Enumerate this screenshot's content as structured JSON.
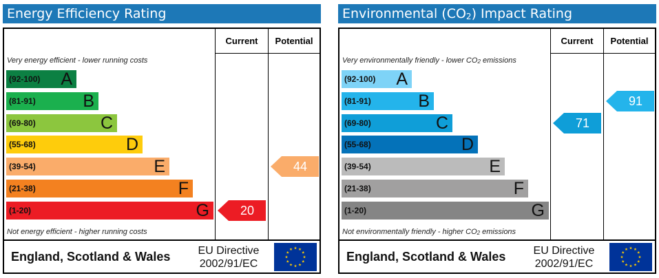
{
  "chart_data": [
    {
      "type": "rating-chart",
      "title": "Energy Efficiency Rating",
      "columns": [
        "Current",
        "Potential"
      ],
      "top_caption": "Very energy efficient - lower running costs",
      "bottom_caption": "Not energy efficient - higher running costs",
      "bands": [
        {
          "range": "(92-100)",
          "letter": "A",
          "color": "#0c8043"
        },
        {
          "range": "(81-91)",
          "letter": "B",
          "color": "#1bb04e"
        },
        {
          "range": "(69-80)",
          "letter": "C",
          "color": "#8cc63e"
        },
        {
          "range": "(55-68)",
          "letter": "D",
          "color": "#fecc0c"
        },
        {
          "range": "(39-54)",
          "letter": "E",
          "color": "#faac6a"
        },
        {
          "range": "(21-38)",
          "letter": "F",
          "color": "#f38120"
        },
        {
          "range": "(1-20)",
          "letter": "G",
          "color": "#ec1c24"
        }
      ],
      "current": {
        "value": 20,
        "band": "G",
        "color": "#ec1c24"
      },
      "potential": {
        "value": 44,
        "band": "E",
        "color": "#faac6a"
      }
    },
    {
      "type": "rating-chart",
      "title": "Environmental (CO2) Impact Rating",
      "title_parts": {
        "before": "Environmental (CO",
        "sub": "2",
        "after": ") Impact Rating"
      },
      "columns": [
        "Current",
        "Potential"
      ],
      "top_caption": "Very environmentally friendly - lower CO2 emissions",
      "top_caption_parts": {
        "before": "Very environmentally friendly - lower CO",
        "sub": "2",
        "after": " emissions"
      },
      "bottom_caption": "Not environmentally friendly - higher CO2 emissions",
      "bottom_caption_parts": {
        "before": "Not environmentally friendly - higher CO",
        "sub": "2",
        "after": " emissions"
      },
      "bands": [
        {
          "range": "(92-100)",
          "letter": "A",
          "color": "#7ed3f7"
        },
        {
          "range": "(81-91)",
          "letter": "B",
          "color": "#24b4eb"
        },
        {
          "range": "(69-80)",
          "letter": "C",
          "color": "#0f9ed8"
        },
        {
          "range": "(55-68)",
          "letter": "D",
          "color": "#0472b9"
        },
        {
          "range": "(39-54)",
          "letter": "E",
          "color": "#bbbbbb"
        },
        {
          "range": "(21-38)",
          "letter": "F",
          "color": "#a1a0a0"
        },
        {
          "range": "(1-20)",
          "letter": "G",
          "color": "#858585"
        }
      ],
      "current": {
        "value": 71,
        "band": "C",
        "color": "#0f9ed8"
      },
      "potential": {
        "value": 91,
        "band": "B",
        "color": "#24b4eb"
      }
    }
  ],
  "footer": {
    "region": "England, Scotland & Wales",
    "directive_line1": "EU Directive",
    "directive_line2": "2002/91/EC",
    "flag_color": "#003399",
    "star_color": "#ffcc00"
  }
}
